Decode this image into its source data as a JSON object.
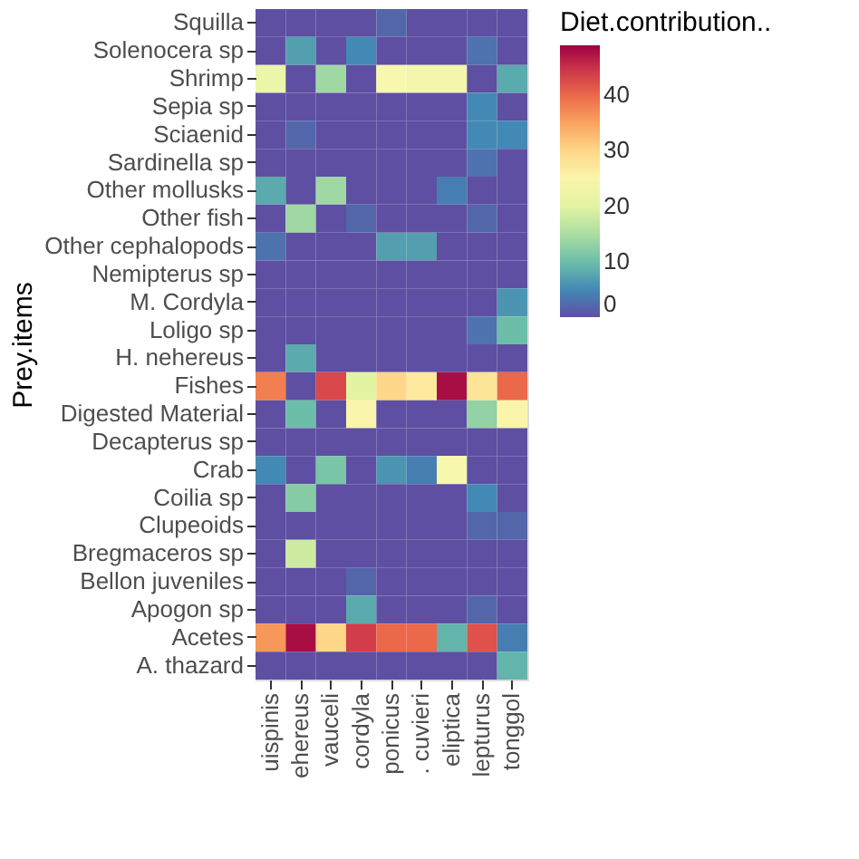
{
  "chart_data": {
    "type": "heatmap",
    "ylabel": "Prey.items",
    "legend_title": "Diet.contribution..",
    "categories": [
      "uispinis",
      "ehereus",
      "vauceli",
      "cordyla",
      "ponicus",
      ". cuvieri",
      "eliptica",
      "lepturus",
      "tonggol"
    ],
    "y_categories": [
      "Squilla",
      "Solenocera sp",
      "Shrimp",
      "Sepia sp",
      "Sciaenid",
      "Sardinella sp",
      "Other mollusks",
      "Other fish",
      "Other cephalopods",
      "Nemipterus sp",
      "M. Cordyla",
      "Loligo sp",
      "H. nehereus",
      "Fishes",
      "Digested Material",
      "Decapterus sp",
      "Crab",
      "Coilia sp",
      "Clupeoids",
      "Bregmaceros sp",
      "Bellon juveniles",
      "Apogon sp",
      "Acetes",
      "A. thazard"
    ],
    "cells": [
      [
        0,
        0,
        0,
        0,
        2,
        0,
        0,
        0,
        0
      ],
      [
        0,
        7,
        0,
        5,
        0,
        0,
        0,
        3,
        0
      ],
      [
        22,
        0,
        14,
        0,
        24,
        23,
        23,
        0,
        8
      ],
      [
        0,
        0,
        0,
        0,
        0,
        0,
        0,
        5,
        0
      ],
      [
        0,
        2,
        0,
        0,
        0,
        0,
        0,
        5,
        5
      ],
      [
        0,
        0,
        0,
        0,
        0,
        0,
        0,
        3,
        0
      ],
      [
        8,
        0,
        14,
        0,
        0,
        0,
        4,
        0,
        0
      ],
      [
        0,
        14,
        0,
        2,
        0,
        0,
        0,
        2,
        0
      ],
      [
        3,
        0,
        0,
        0,
        7,
        7,
        0,
        0,
        0
      ],
      [
        0,
        0,
        0,
        0,
        0,
        0,
        0,
        0,
        0
      ],
      [
        0,
        0,
        0,
        0,
        0,
        0,
        0,
        0,
        6
      ],
      [
        0,
        0,
        0,
        0,
        0,
        0,
        0,
        3,
        10
      ],
      [
        0,
        8,
        0,
        0,
        0,
        0,
        0,
        0,
        0
      ],
      [
        38,
        0,
        43,
        20,
        30,
        27,
        48,
        28,
        40
      ],
      [
        0,
        10,
        0,
        25,
        0,
        0,
        0,
        13,
        25
      ],
      [
        0,
        0,
        0,
        0,
        0,
        0,
        0,
        0,
        0
      ],
      [
        5,
        0,
        11,
        0,
        6,
        4,
        24,
        0,
        0
      ],
      [
        0,
        12,
        0,
        0,
        0,
        0,
        0,
        5,
        0
      ],
      [
        0,
        0,
        0,
        0,
        0,
        0,
        0,
        2,
        2
      ],
      [
        0,
        18,
        0,
        0,
        0,
        0,
        0,
        0,
        0
      ],
      [
        0,
        0,
        0,
        2,
        0,
        0,
        0,
        0,
        0
      ],
      [
        0,
        0,
        0,
        8,
        0,
        0,
        0,
        2,
        0
      ],
      [
        36,
        48,
        30,
        44,
        40,
        40,
        9,
        42,
        4
      ],
      [
        0,
        0,
        0,
        0,
        0,
        0,
        0,
        0,
        9
      ]
    ],
    "clim": [
      0,
      49
    ],
    "cticks": [
      0,
      10,
      20,
      30,
      40
    ],
    "grid": false
  }
}
